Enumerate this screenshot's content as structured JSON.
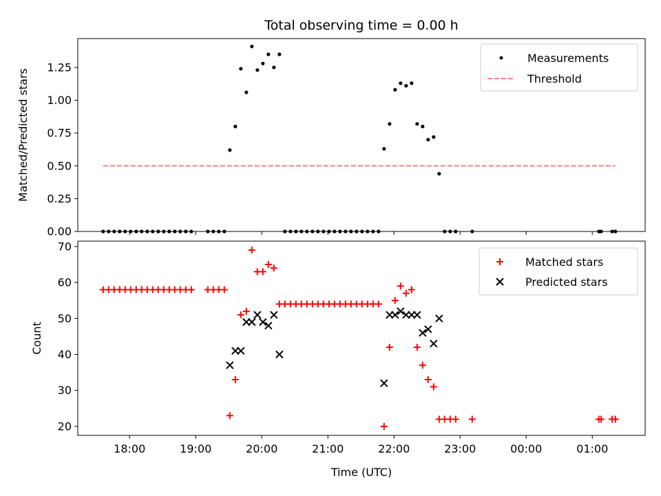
{
  "chart_data": [
    {
      "type": "scatter",
      "title": "Total observing time = 0.00 h",
      "ylabel": "Matched/Predicted stars",
      "xlim": [
        "17:13",
        "01:48"
      ],
      "ylim": [
        0,
        1.47
      ],
      "yticks": [
        "0.00",
        "0.25",
        "0.50",
        "0.75",
        "1.00",
        "1.25"
      ],
      "legend": {
        "placement": "top-right",
        "entries": [
          "Measurements",
          "Threshold"
        ]
      },
      "series": [
        {
          "name": "Measurements",
          "marker": "dot",
          "color": "#000000",
          "points": [
            [
              "17:36",
              0
            ],
            [
              "17:41",
              0
            ],
            [
              "17:46",
              0
            ],
            [
              "17:51",
              0
            ],
            [
              "17:56",
              0
            ],
            [
              "18:01",
              0
            ],
            [
              "18:06",
              0
            ],
            [
              "18:11",
              0
            ],
            [
              "18:16",
              0
            ],
            [
              "18:21",
              0
            ],
            [
              "18:26",
              0
            ],
            [
              "18:31",
              0
            ],
            [
              "18:36",
              0
            ],
            [
              "18:41",
              0
            ],
            [
              "18:46",
              0
            ],
            [
              "18:51",
              0
            ],
            [
              "18:56",
              0
            ],
            [
              "19:11",
              0
            ],
            [
              "19:16",
              0
            ],
            [
              "19:21",
              0
            ],
            [
              "19:26",
              0
            ],
            [
              "19:31",
              0.62
            ],
            [
              "19:36",
              0.8
            ],
            [
              "19:41",
              1.24
            ],
            [
              "19:46",
              1.06
            ],
            [
              "19:51",
              1.41
            ],
            [
              "19:56",
              1.23
            ],
            [
              "20:01",
              1.28
            ],
            [
              "20:06",
              1.35
            ],
            [
              "20:11",
              1.25
            ],
            [
              "20:16",
              1.35
            ],
            [
              "20:21",
              0
            ],
            [
              "20:26",
              0
            ],
            [
              "20:31",
              0
            ],
            [
              "20:36",
              0
            ],
            [
              "20:41",
              0
            ],
            [
              "20:46",
              0
            ],
            [
              "20:51",
              0
            ],
            [
              "20:56",
              0
            ],
            [
              "21:01",
              0
            ],
            [
              "21:06",
              0
            ],
            [
              "21:11",
              0
            ],
            [
              "21:16",
              0
            ],
            [
              "21:21",
              0
            ],
            [
              "21:26",
              0
            ],
            [
              "21:31",
              0
            ],
            [
              "21:36",
              0
            ],
            [
              "21:41",
              0
            ],
            [
              "21:46",
              0
            ],
            [
              "21:51",
              0.63
            ],
            [
              "21:56",
              0.82
            ],
            [
              "22:01",
              1.08
            ],
            [
              "22:06",
              1.13
            ],
            [
              "22:11",
              1.11
            ],
            [
              "22:16",
              1.13
            ],
            [
              "22:21",
              0.82
            ],
            [
              "22:26",
              0.8
            ],
            [
              "22:31",
              0.7
            ],
            [
              "22:36",
              0.72
            ],
            [
              "22:41",
              0.44
            ],
            [
              "22:46",
              0
            ],
            [
              "22:51",
              0
            ],
            [
              "22:56",
              0
            ],
            [
              "23:11",
              0
            ],
            [
              "01:06",
              0
            ],
            [
              "01:08",
              0
            ],
            [
              "01:18",
              0
            ],
            [
              "01:21",
              0
            ]
          ]
        },
        {
          "name": "Threshold",
          "style": "dashed-line",
          "color": "#ff7f7f",
          "points": [
            [
              "17:36",
              0.5
            ],
            [
              "01:21",
              0.5
            ]
          ]
        }
      ]
    },
    {
      "type": "scatter",
      "xlabel": "Time (UTC)",
      "ylabel": "Count",
      "xlim": [
        "17:13",
        "01:48"
      ],
      "ylim": [
        17.5,
        71.5
      ],
      "xticks": [
        "18:00",
        "19:00",
        "20:00",
        "21:00",
        "22:00",
        "23:00",
        "00:00",
        "01:00"
      ],
      "yticks": [
        "20",
        "30",
        "40",
        "50",
        "60",
        "70"
      ],
      "legend": {
        "placement": "top-right",
        "entries": [
          "Matched stars",
          "Predicted stars"
        ]
      },
      "series": [
        {
          "name": "Matched stars",
          "marker": "plus",
          "color": "#ff0000",
          "points": [
            [
              "17:36",
              58
            ],
            [
              "17:41",
              58
            ],
            [
              "17:46",
              58
            ],
            [
              "17:51",
              58
            ],
            [
              "17:56",
              58
            ],
            [
              "18:01",
              58
            ],
            [
              "18:06",
              58
            ],
            [
              "18:11",
              58
            ],
            [
              "18:16",
              58
            ],
            [
              "18:21",
              58
            ],
            [
              "18:26",
              58
            ],
            [
              "18:31",
              58
            ],
            [
              "18:36",
              58
            ],
            [
              "18:41",
              58
            ],
            [
              "18:46",
              58
            ],
            [
              "18:51",
              58
            ],
            [
              "18:56",
              58
            ],
            [
              "19:11",
              58
            ],
            [
              "19:16",
              58
            ],
            [
              "19:21",
              58
            ],
            [
              "19:26",
              58
            ],
            [
              "19:31",
              23
            ],
            [
              "19:36",
              33
            ],
            [
              "19:41",
              51
            ],
            [
              "19:46",
              52
            ],
            [
              "19:51",
              69
            ],
            [
              "19:56",
              63
            ],
            [
              "20:01",
              63
            ],
            [
              "20:06",
              65
            ],
            [
              "20:11",
              64
            ],
            [
              "20:16",
              54
            ],
            [
              "20:21",
              54
            ],
            [
              "20:26",
              54
            ],
            [
              "20:31",
              54
            ],
            [
              "20:36",
              54
            ],
            [
              "20:41",
              54
            ],
            [
              "20:46",
              54
            ],
            [
              "20:51",
              54
            ],
            [
              "20:56",
              54
            ],
            [
              "21:01",
              54
            ],
            [
              "21:06",
              54
            ],
            [
              "21:11",
              54
            ],
            [
              "21:16",
              54
            ],
            [
              "21:21",
              54
            ],
            [
              "21:26",
              54
            ],
            [
              "21:31",
              54
            ],
            [
              "21:36",
              54
            ],
            [
              "21:41",
              54
            ],
            [
              "21:46",
              54
            ],
            [
              "21:51",
              20
            ],
            [
              "21:56",
              42
            ],
            [
              "22:01",
              55
            ],
            [
              "22:06",
              59
            ],
            [
              "22:11",
              57
            ],
            [
              "22:16",
              58
            ],
            [
              "22:21",
              42
            ],
            [
              "22:26",
              37
            ],
            [
              "22:31",
              33
            ],
            [
              "22:36",
              31
            ],
            [
              "22:41",
              22
            ],
            [
              "22:46",
              22
            ],
            [
              "22:51",
              22
            ],
            [
              "22:56",
              22
            ],
            [
              "23:11",
              22
            ],
            [
              "01:06",
              22
            ],
            [
              "01:08",
              22
            ],
            [
              "01:18",
              22
            ],
            [
              "01:21",
              22
            ]
          ]
        },
        {
          "name": "Predicted stars",
          "marker": "x",
          "color": "#000000",
          "points": [
            [
              "19:31",
              37
            ],
            [
              "19:36",
              41
            ],
            [
              "19:41",
              41
            ],
            [
              "19:46",
              49
            ],
            [
              "19:51",
              49
            ],
            [
              "19:56",
              51
            ],
            [
              "20:01",
              49
            ],
            [
              "20:06",
              48
            ],
            [
              "20:11",
              51
            ],
            [
              "20:16",
              40
            ],
            [
              "21:51",
              32
            ],
            [
              "21:56",
              51
            ],
            [
              "22:01",
              51
            ],
            [
              "22:06",
              52
            ],
            [
              "22:11",
              51
            ],
            [
              "22:16",
              51
            ],
            [
              "22:21",
              51
            ],
            [
              "22:26",
              46
            ],
            [
              "22:31",
              47
            ],
            [
              "22:36",
              43
            ],
            [
              "22:41",
              50
            ]
          ]
        }
      ]
    }
  ]
}
